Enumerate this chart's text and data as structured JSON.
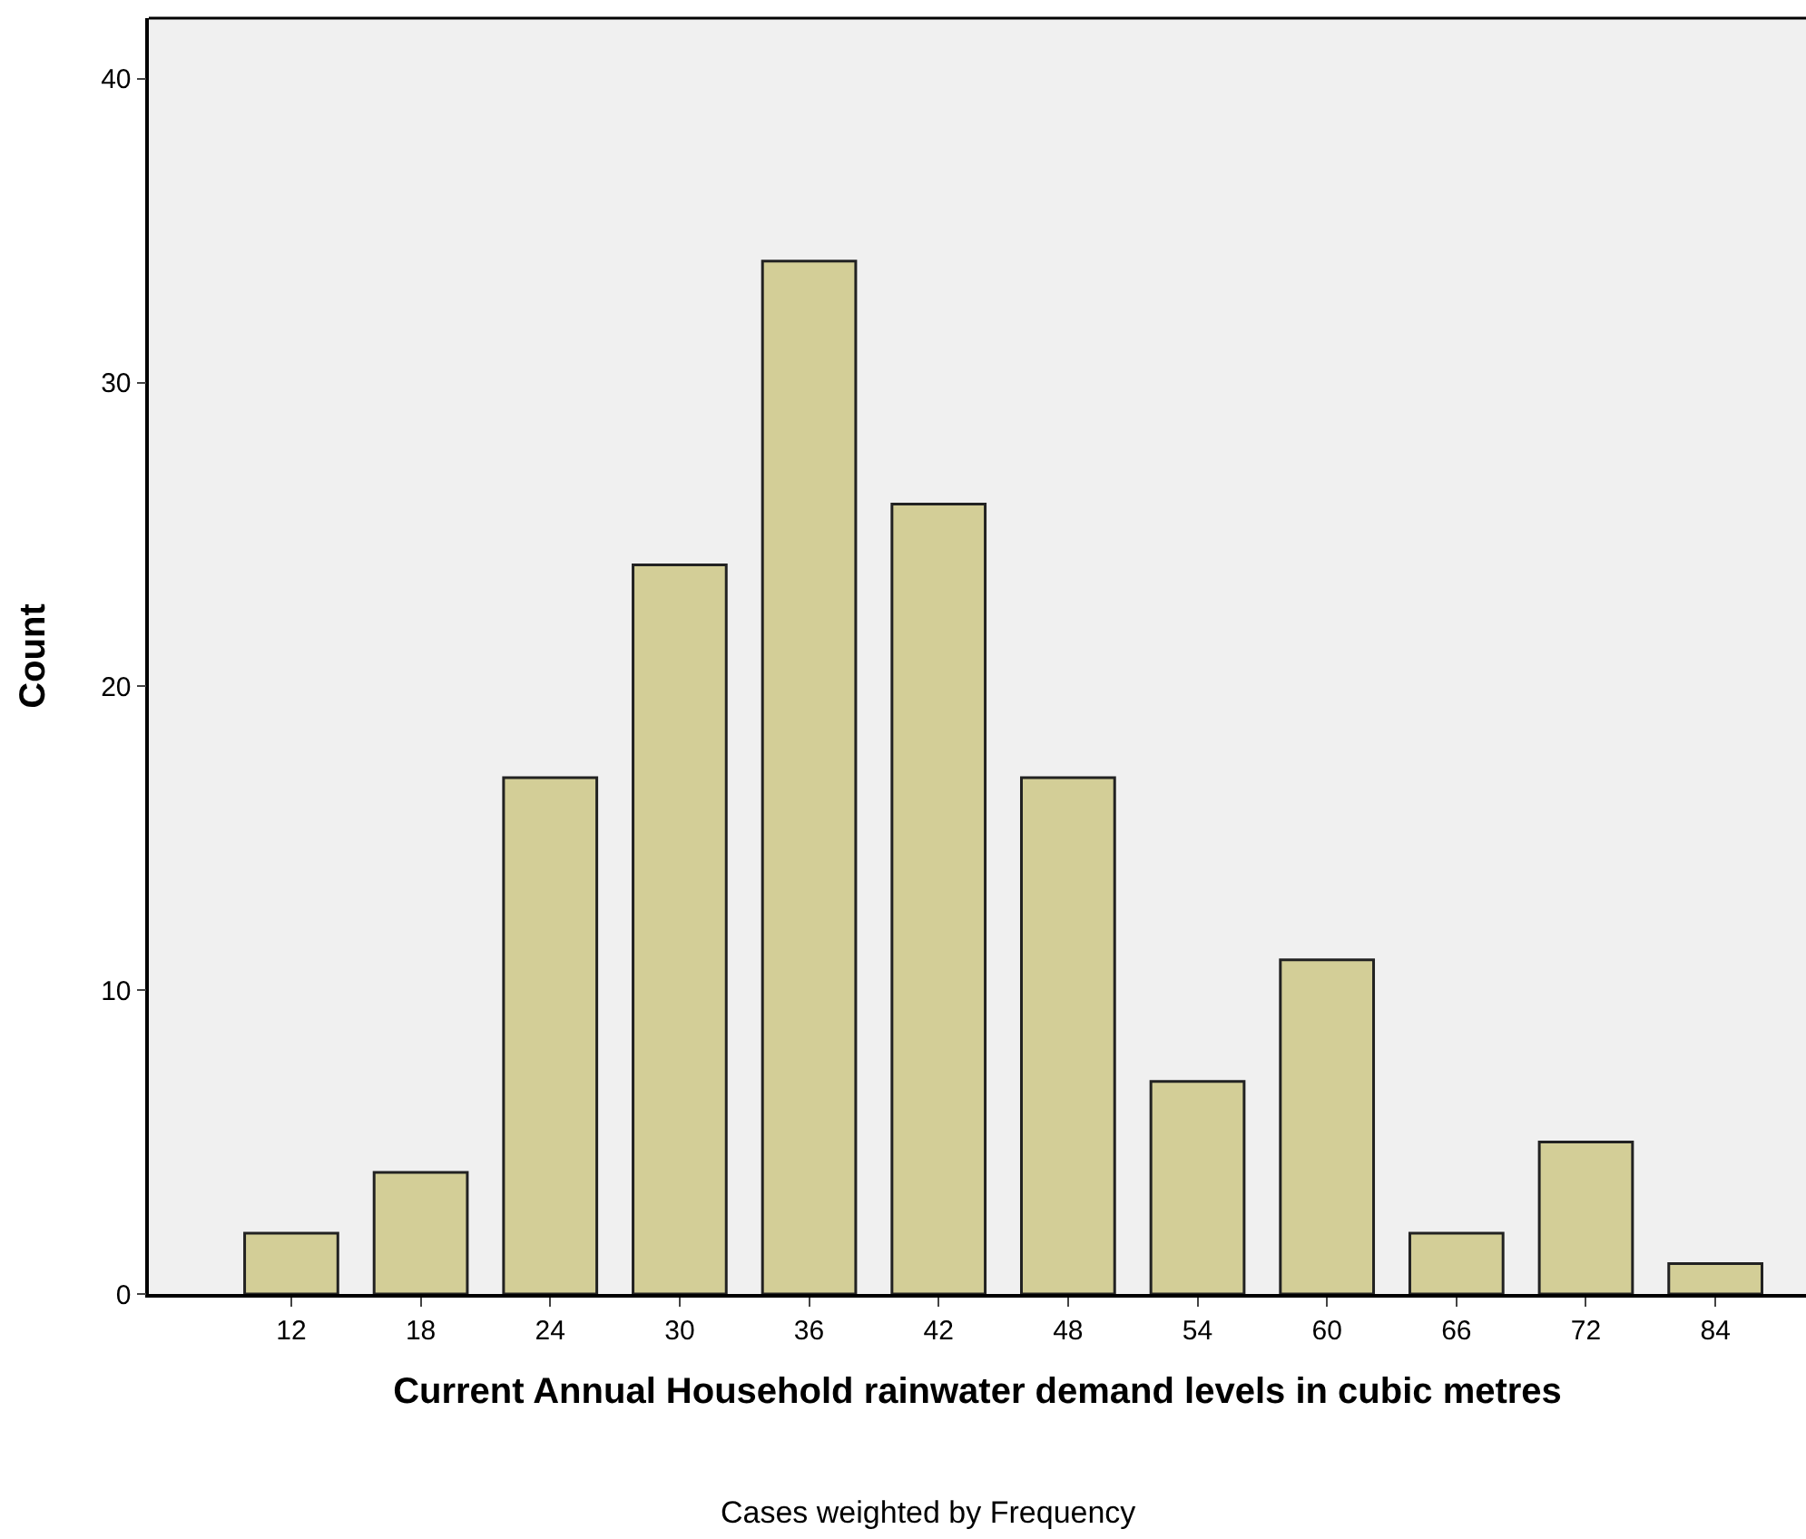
{
  "chart_data": {
    "type": "bar",
    "xlabel": "Current Annual Household rainwater demand levels in cubic metres",
    "ylabel": "Count",
    "categories": [
      "12",
      "18",
      "24",
      "30",
      "36",
      "42",
      "48",
      "54",
      "60",
      "66",
      "72",
      "84"
    ],
    "values": [
      2,
      4,
      17,
      24,
      34,
      26,
      17,
      7,
      11,
      2,
      5,
      1
    ],
    "color": "#d3ce97",
    "ylim": [
      0,
      42
    ],
    "yticks": [
      0,
      10,
      20,
      30,
      40
    ],
    "grid": false,
    "legend": false,
    "annotations": [
      "Cases weighted by Frequency"
    ]
  }
}
